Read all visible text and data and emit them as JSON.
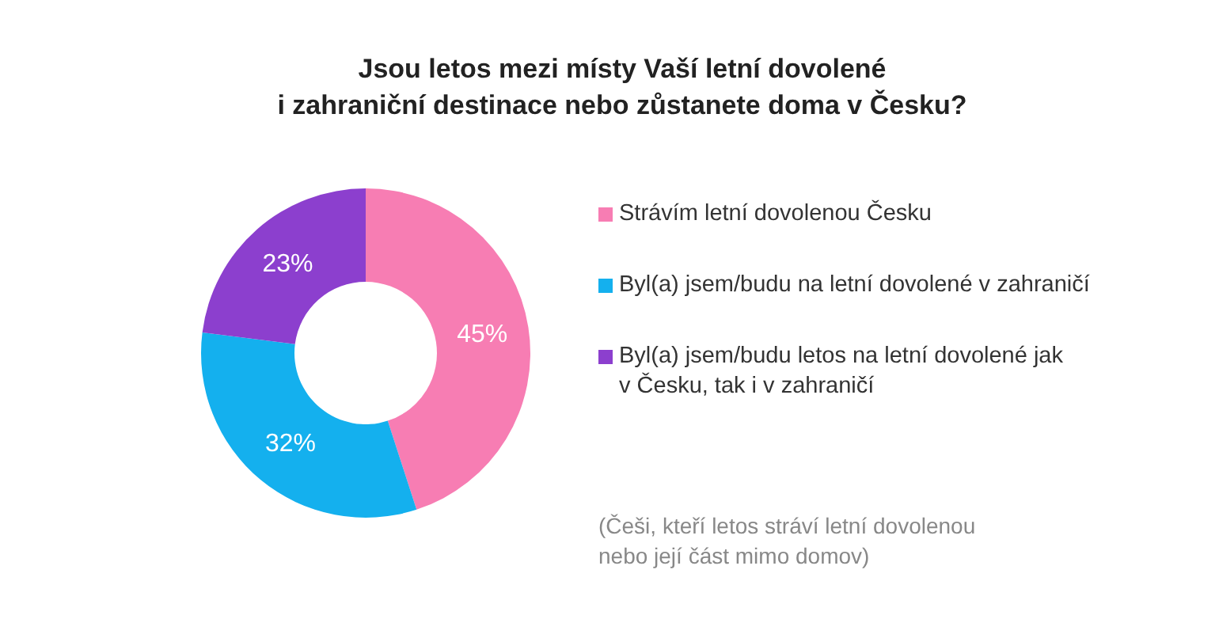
{
  "chart_data": {
    "type": "donut",
    "title": "Jsou letos mezi místy Vaší letní dovolené\ni zahraniční destinace nebo zůstanete doma v Česku?",
    "categories": [
      "Strávím letní dovolenou Česku",
      "Byl(a) jsem/budu na letní dovolené v zahraničí",
      "Byl(a) jsem/budu letos na letní dovolené jak\nv Česku, tak i v zahraničí"
    ],
    "values": [
      45,
      32,
      23
    ],
    "colors": [
      "#f77db3",
      "#14b0ee",
      "#8c3fce"
    ],
    "value_labels": [
      "45%",
      "32%",
      "23%"
    ],
    "legend": "right",
    "annotations": [
      "(Češi, kteří letos stráví letní dovolenou\nnebo její část mimo domov)"
    ]
  }
}
